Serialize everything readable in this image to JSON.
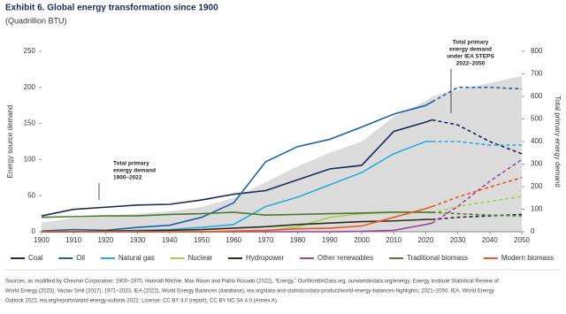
{
  "chart_data": {
    "type": "line",
    "title": "Exhibit 6. Global energy transformation since 1900",
    "subtitle": "(Quadrillion BTU)",
    "y_label": "Energy source demand",
    "y2_label": "Total primary energy demand",
    "annotations": [
      [
        "Total primary",
        "energy demand",
        "1900–2022"
      ],
      [
        "Total primary",
        "energy demand",
        "under IEA STEPS",
        "2022–2050"
      ]
    ],
    "x": [
      1900,
      1910,
      1920,
      1930,
      1940,
      1950,
      1960,
      1970,
      1980,
      1990,
      2000,
      2010,
      2020,
      2022,
      2030,
      2040,
      2050
    ],
    "projection_from": 2022,
    "xlim": [
      1900,
      2050
    ],
    "xticks": [
      1900,
      1910,
      1920,
      1930,
      1940,
      1950,
      1960,
      1970,
      1980,
      1990,
      2000,
      2010,
      2020,
      2030,
      2040,
      2050
    ],
    "ylim": [
      0,
      250
    ],
    "yticks": [
      0,
      50,
      100,
      150,
      200,
      250
    ],
    "y2lim": [
      0,
      800
    ],
    "y2ticks": [
      0,
      100,
      200,
      300,
      400,
      500,
      600,
      700,
      800
    ],
    "area": {
      "axis": "y2",
      "color": "#dcdcdc",
      "values": [
        40,
        60,
        70,
        80,
        90,
        110,
        150,
        220,
        290,
        350,
        400,
        510,
        580,
        600,
        630,
        660,
        690
      ]
    },
    "series": [
      {
        "name": "Coal",
        "color": "#1b2a5c",
        "values": [
          22,
          31,
          34,
          37,
          38,
          44,
          52,
          57,
          72,
          87,
          92,
          139,
          152,
          155,
          148,
          125,
          108
        ]
      },
      {
        "name": "Oil",
        "color": "#1e63a8",
        "values": [
          1,
          3,
          2,
          6,
          9,
          20,
          40,
          97,
          118,
          128,
          145,
          163,
          175,
          180,
          200,
          200,
          198
        ]
      },
      {
        "name": "Natural gas",
        "color": "#29abe2",
        "values": [
          0,
          0,
          1,
          2,
          3,
          6,
          10,
          35,
          48,
          65,
          82,
          108,
          125,
          125,
          125,
          120,
          120
        ]
      },
      {
        "name": "Nuclear",
        "color": "#a4cf4d",
        "values": [
          0,
          0,
          0,
          0,
          0,
          0,
          0,
          1,
          7,
          20,
          25,
          27,
          27,
          26,
          35,
          42,
          49
        ]
      },
      {
        "name": "Hydropower",
        "color": "#2b2b1f",
        "values": [
          0,
          0,
          1,
          1,
          2,
          3,
          5,
          7,
          10,
          12,
          14,
          15,
          17,
          17,
          20,
          22,
          24
        ]
      },
      {
        "name": "Other renewables",
        "color": "#a3429b",
        "values": [
          0,
          0,
          0,
          0,
          0,
          0,
          0,
          0,
          0,
          0,
          0.5,
          2,
          10,
          12,
          35,
          70,
          100
        ]
      },
      {
        "name": "Traditional biomass",
        "color": "#4a7b2e",
        "values": [
          20,
          21,
          22,
          22,
          24,
          25,
          27,
          23,
          24,
          25,
          26,
          27,
          27,
          27,
          25,
          23,
          22
        ]
      },
      {
        "name": "Modern biomass",
        "color": "#e85a22",
        "values": [
          0,
          0,
          0,
          0,
          0,
          0,
          1,
          2,
          4,
          5,
          8,
          20,
          32,
          35,
          48,
          62,
          75
        ]
      }
    ],
    "source": [
      "Sources, as modified by Chevron Corporation: 1900–1970, Hannah Ritchie, Max Roser and Pablo Rosado (2022), “Energy,” OurWorldInData.org, ourworldindata.org/energy; Energy Institute Statistical Review of",
      "World Energy (2023); Vaclav Smil (2017); 1971–2020, IEA (2022), World Energy Balances (database), iea.org/data-and-statistics/data-product/world-energy-balances-highlights; 2021–2050, IEA, World Energy",
      "Outlook 2022, iea.org/reports/world-energy-outlook-2022. License: CC BY 4.0 (report), CC BY NC SA 4.0 (Annex A)."
    ]
  }
}
